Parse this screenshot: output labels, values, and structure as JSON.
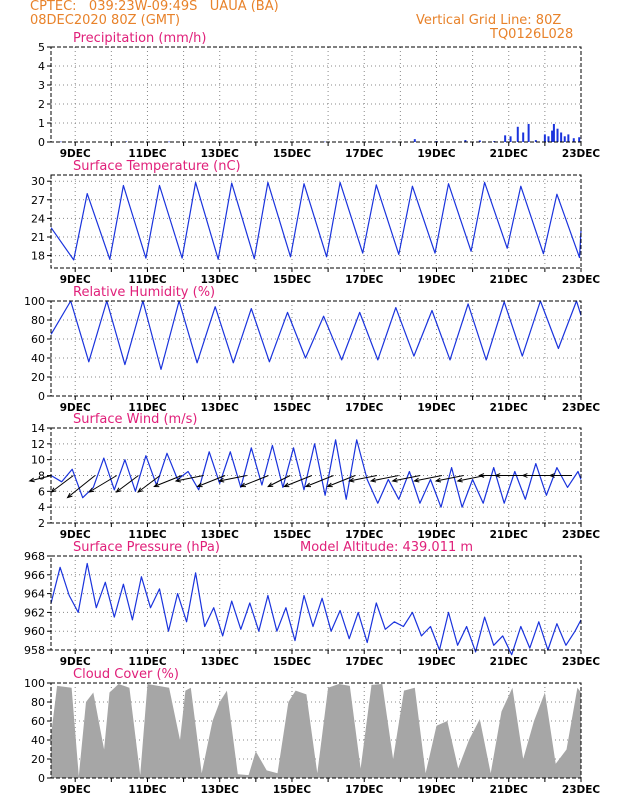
{
  "header": {
    "line1_left": "CPTEC:   039:23W-09:49S   UAUA (BA)",
    "line2_left": "08DEC2020 80Z (GMT)",
    "line1_right": "Vertical Grid Line: 80Z",
    "line2_right": "TQ0126L028",
    "color": "#e8822a"
  },
  "colors": {
    "title": "#e0207a",
    "line": "#1a33dd",
    "cloud": "#a6a6a6",
    "grid": "#888888"
  },
  "chart_data": [
    {
      "type": "bar",
      "title": "Precipitation (mm/h)",
      "ylim": [
        0,
        5
      ],
      "yticks": [
        0,
        1,
        2,
        3,
        4,
        5
      ],
      "xlabels": [
        "9DEC",
        "11DEC",
        "13DEC",
        "15DEC",
        "17DEC",
        "19DEC",
        "21DEC",
        "23DEC"
      ],
      "x_range_days": [
        8.33,
        23.0
      ],
      "values": [
        [
          8.6,
          0.02
        ],
        [
          10.4,
          0.03
        ],
        [
          11.6,
          0.02
        ],
        [
          13.5,
          0.02
        ],
        [
          14.8,
          0.02
        ],
        [
          15.9,
          0.02
        ],
        [
          16.8,
          0.03
        ],
        [
          17.7,
          0.02
        ],
        [
          18.4,
          0.15
        ],
        [
          19.0,
          0.05
        ],
        [
          19.8,
          0.1
        ],
        [
          20.2,
          0.08
        ],
        [
          20.6,
          0.05
        ],
        [
          20.9,
          0.35
        ],
        [
          21.05,
          0.3
        ],
        [
          21.25,
          0.8
        ],
        [
          21.4,
          0.5
        ],
        [
          21.55,
          0.95
        ],
        [
          21.75,
          0.1
        ],
        [
          22.0,
          0.4
        ],
        [
          22.1,
          0.3
        ],
        [
          22.2,
          0.6
        ],
        [
          22.25,
          0.95
        ],
        [
          22.35,
          0.7
        ],
        [
          22.45,
          0.5
        ],
        [
          22.55,
          0.3
        ],
        [
          22.65,
          0.4
        ],
        [
          22.8,
          0.2
        ],
        [
          22.95,
          0.25
        ]
      ]
    },
    {
      "type": "line",
      "title": "Surface Temperature (nC)",
      "ylim": [
        16,
        31
      ],
      "yticks": [
        18,
        21,
        24,
        27,
        30
      ],
      "xlabels": [
        "9DEC",
        "11DEC",
        "13DEC",
        "15DEC",
        "17DEC",
        "19DEC",
        "21DEC",
        "23DEC"
      ],
      "x_range_days": [
        8.33,
        23.0
      ],
      "x": [
        8.333,
        8.958,
        9.333,
        9.958,
        10.333,
        10.958,
        11.333,
        11.958,
        12.333,
        12.958,
        13.333,
        13.958,
        14.333,
        14.958,
        15.333,
        15.958,
        16.333,
        16.958,
        17.333,
        17.958,
        18.333,
        18.958,
        19.333,
        19.958,
        20.333,
        20.958,
        21.333,
        21.958,
        22.333,
        22.958,
        23.0
      ],
      "y": [
        22.5,
        17.3,
        28.0,
        17.4,
        29.3,
        17.6,
        29.3,
        17.6,
        29.8,
        17.4,
        29.7,
        17.5,
        29.8,
        17.8,
        29.6,
        17.8,
        29.8,
        18.4,
        29.4,
        18.2,
        29.2,
        18.4,
        29.6,
        18.7,
        29.8,
        19.2,
        29.2,
        18.3,
        27.9,
        17.7,
        22.0
      ]
    },
    {
      "type": "line",
      "title": "Relative Humidity (%)",
      "ylim": [
        0,
        100
      ],
      "yticks": [
        0,
        20,
        40,
        60,
        80,
        100
      ],
      "xlabels": [
        "9DEC",
        "11DEC",
        "13DEC",
        "15DEC",
        "17DEC",
        "19DEC",
        "21DEC",
        "23DEC"
      ],
      "x_range_days": [
        8.33,
        23.0
      ],
      "x": [
        8.333,
        8.875,
        9.375,
        9.875,
        10.375,
        10.875,
        11.375,
        11.875,
        12.375,
        12.875,
        13.375,
        13.875,
        14.375,
        14.875,
        15.375,
        15.875,
        16.375,
        16.875,
        17.375,
        17.875,
        18.375,
        18.875,
        19.375,
        19.875,
        20.375,
        20.875,
        21.375,
        21.875,
        22.375,
        22.875,
        23.0
      ],
      "y": [
        65,
        100,
        36,
        100,
        33,
        100,
        28,
        100,
        35,
        94,
        35,
        92,
        36,
        88,
        40,
        84,
        38,
        88,
        38,
        93,
        42,
        90,
        38,
        97,
        38,
        99,
        42,
        100,
        50,
        100,
        85
      ]
    },
    {
      "type": "line",
      "title": "Surface Wind (m/s)",
      "ylim": [
        2,
        14
      ],
      "yticks": [
        2,
        4,
        6,
        8,
        10,
        12,
        14
      ],
      "xlabels": [
        "9DEC",
        "11DEC",
        "13DEC",
        "15DEC",
        "17DEC",
        "19DEC",
        "21DEC",
        "23DEC"
      ],
      "x_range_days": [
        8.33,
        23.0
      ],
      "x": [
        8.333,
        8.625,
        8.917,
        9.208,
        9.5,
        9.792,
        10.083,
        10.375,
        10.667,
        10.958,
        11.25,
        11.542,
        11.833,
        12.125,
        12.417,
        12.708,
        13.0,
        13.292,
        13.583,
        13.875,
        14.167,
        14.458,
        14.75,
        15.042,
        15.333,
        15.625,
        15.917,
        16.208,
        16.5,
        16.792,
        17.083,
        17.375,
        17.667,
        17.958,
        18.25,
        18.542,
        18.833,
        19.125,
        19.417,
        19.708,
        20.0,
        20.292,
        20.583,
        20.875,
        21.167,
        21.458,
        21.75,
        22.042,
        22.333,
        22.625,
        22.917,
        23.0
      ],
      "y": [
        8.0,
        7.2,
        8.8,
        5.2,
        6.5,
        10.2,
        6.2,
        10.0,
        6.0,
        10.5,
        6.8,
        10.8,
        7.5,
        8.5,
        6.2,
        11.0,
        7.0,
        11.0,
        6.5,
        11.5,
        6.8,
        11.8,
        6.5,
        11.5,
        6.2,
        12.0,
        5.5,
        12.5,
        5.0,
        12.5,
        7.5,
        4.5,
        7.5,
        5.0,
        8.5,
        4.5,
        7.5,
        4.0,
        9.0,
        4.0,
        7.5,
        4.5,
        9.0,
        4.5,
        8.5,
        5.0,
        9.5,
        5.5,
        9.0,
        6.5,
        8.5,
        7.5
      ],
      "vectors": {
        "x": [
          8.35,
          8.95,
          9.55,
          10.15,
          10.75,
          11.35,
          11.95,
          12.55,
          13.15,
          13.75,
          14.35,
          14.95,
          15.55,
          16.15,
          16.75,
          17.35,
          17.95,
          18.55,
          19.15,
          19.75,
          20.35,
          20.95,
          21.55,
          22.15,
          22.75
        ],
        "u": [
          -4,
          -4,
          -5,
          -5,
          -4,
          -4,
          -5,
          -5,
          -5,
          -5,
          -5,
          -4,
          -5,
          -5,
          -5,
          -5,
          -5,
          -5,
          -5,
          -5,
          -5,
          -5,
          -6,
          -5,
          -4
        ],
        "v": [
          -1,
          -3,
          -4,
          -3,
          -3,
          -3,
          -2,
          -1,
          -2,
          -1,
          -2,
          -2,
          -2,
          -2,
          -2,
          -1,
          -1,
          -1,
          -1,
          -1,
          -1,
          0,
          0,
          0,
          0
        ]
      }
    },
    {
      "type": "line",
      "title": "Surface Pressure (hPa)",
      "annotation": "Model Altitude: 439.011 m",
      "ylim": [
        958,
        968
      ],
      "yticks": [
        958,
        960,
        962,
        964,
        966,
        968
      ],
      "xlabels": [
        "9DEC",
        "11DEC",
        "13DEC",
        "15DEC",
        "17DEC",
        "19DEC",
        "21DEC",
        "23DEC"
      ],
      "x_range_days": [
        8.33,
        23.0
      ],
      "x": [
        8.333,
        8.583,
        8.833,
        9.083,
        9.333,
        9.583,
        9.833,
        10.083,
        10.333,
        10.583,
        10.833,
        11.083,
        11.333,
        11.583,
        11.833,
        12.083,
        12.333,
        12.583,
        12.833,
        13.083,
        13.333,
        13.583,
        13.833,
        14.083,
        14.333,
        14.583,
        14.833,
        15.083,
        15.333,
        15.583,
        15.833,
        16.083,
        16.333,
        16.583,
        16.833,
        17.083,
        17.333,
        17.583,
        17.833,
        18.083,
        18.333,
        18.583,
        18.833,
        19.083,
        19.333,
        19.583,
        19.833,
        20.083,
        20.333,
        20.583,
        20.833,
        21.083,
        21.333,
        21.583,
        21.833,
        22.083,
        22.333,
        22.583,
        22.833,
        23.0
      ],
      "y": [
        963.0,
        966.8,
        963.8,
        962.0,
        967.2,
        962.5,
        965.2,
        961.5,
        965.0,
        961.2,
        965.8,
        962.5,
        964.5,
        960.0,
        964.0,
        961.0,
        966.2,
        960.5,
        962.5,
        959.5,
        963.2,
        960.2,
        963.0,
        960.0,
        963.8,
        960.0,
        962.5,
        959.0,
        963.8,
        960.5,
        963.5,
        960.0,
        962.2,
        959.2,
        962.0,
        958.8,
        963.0,
        960.2,
        961.0,
        960.5,
        962.0,
        959.5,
        960.5,
        958.0,
        962.0,
        958.5,
        960.5,
        957.8,
        961.5,
        958.5,
        959.5,
        957.5,
        960.5,
        958.2,
        961.0,
        958.0,
        960.8,
        958.5,
        960.0,
        961.2
      ]
    },
    {
      "type": "area",
      "title": "Cloud Cover (%)",
      "ylim": [
        0,
        100
      ],
      "yticks": [
        0,
        20,
        40,
        60,
        80,
        100
      ],
      "xlabels": [
        "9DEC",
        "11DEC",
        "13DEC",
        "15DEC",
        "17DEC",
        "19DEC",
        "21DEC",
        "23DEC"
      ],
      "x_range_days": [
        8.33,
        23.0
      ],
      "x": [
        8.33,
        8.5,
        8.9,
        9.1,
        9.3,
        9.5,
        9.8,
        9.95,
        10.2,
        10.5,
        10.8,
        11.0,
        11.3,
        11.6,
        11.9,
        12.05,
        12.2,
        12.5,
        12.8,
        13.0,
        13.2,
        13.5,
        13.8,
        14.0,
        14.3,
        14.6,
        14.9,
        15.1,
        15.4,
        15.7,
        16.0,
        16.3,
        16.6,
        16.9,
        17.2,
        17.5,
        17.8,
        18.1,
        18.4,
        18.7,
        19.0,
        19.3,
        19.6,
        19.9,
        20.2,
        20.5,
        20.8,
        21.1,
        21.4,
        21.7,
        22.0,
        22.3,
        22.6,
        22.9,
        23.0
      ],
      "y": [
        45,
        97,
        95,
        2,
        80,
        90,
        30,
        90,
        99,
        95,
        3,
        99,
        97,
        95,
        40,
        92,
        95,
        5,
        60,
        80,
        92,
        4,
        3,
        28,
        8,
        5,
        80,
        92,
        88,
        5,
        95,
        99,
        97,
        10,
        98,
        99,
        20,
        92,
        95,
        5,
        55,
        60,
        10,
        40,
        62,
        5,
        70,
        95,
        20,
        60,
        90,
        15,
        30,
        95,
        90
      ]
    }
  ]
}
